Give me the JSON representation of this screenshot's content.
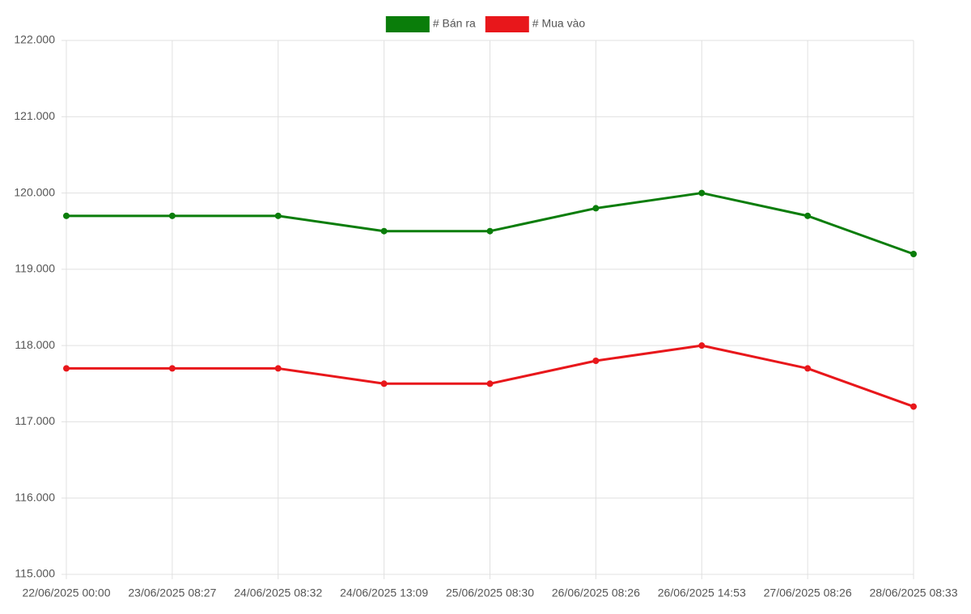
{
  "chart_data": {
    "type": "line",
    "categories": [
      "22/06/2025 00:00",
      "23/06/2025 08:27",
      "24/06/2025 08:32",
      "24/06/2025 13:09",
      "25/06/2025 08:30",
      "26/06/2025 08:26",
      "26/06/2025 14:53",
      "27/06/2025 08:26",
      "28/06/2025 08:33"
    ],
    "series": [
      {
        "name": "# Bán ra",
        "color": "#0a7d0a",
        "values": [
          119700,
          119700,
          119700,
          119500,
          119500,
          119800,
          120000,
          119700,
          119200
        ]
      },
      {
        "name": "# Mua vào",
        "color": "#e8171b",
        "values": [
          117700,
          117700,
          117700,
          117500,
          117500,
          117800,
          118000,
          117700,
          117200
        ]
      }
    ],
    "ylim": [
      115000,
      122000
    ],
    "yticks": [
      {
        "value": 115000,
        "label": "115.000"
      },
      {
        "value": 116000,
        "label": "116.000"
      },
      {
        "value": 117000,
        "label": "117.000"
      },
      {
        "value": 118000,
        "label": "118.000"
      },
      {
        "value": 119000,
        "label": "119.000"
      },
      {
        "value": 120000,
        "label": "120.000"
      },
      {
        "value": 121000,
        "label": "121.000"
      },
      {
        "value": 122000,
        "label": "122.000"
      }
    ],
    "grid": true,
    "legend": "top"
  }
}
